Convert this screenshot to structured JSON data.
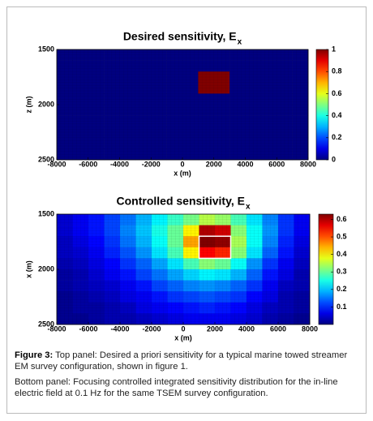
{
  "chart_data": [
    {
      "type": "heatmap",
      "title": "Desired sensitivity, E",
      "title_subscript": "x",
      "xlabel": "x (m)",
      "ylabel": "z (m)",
      "colormap": "jet",
      "xlim": [
        -8000,
        8000
      ],
      "ylim": [
        1500,
        2500
      ],
      "y_inverted": true,
      "xticks": [
        -8000,
        -6000,
        -4000,
        -2000,
        0,
        2000,
        4000,
        6000,
        8000
      ],
      "yticks": [
        1500,
        2000,
        2500
      ],
      "clim": [
        0,
        1
      ],
      "cticks": [
        0,
        0.2,
        0.4,
        0.6,
        0.8,
        1
      ],
      "z": [
        [
          0,
          0,
          0,
          0,
          0,
          0,
          0,
          0,
          0,
          0,
          0,
          0,
          0,
          0,
          0,
          0
        ],
        [
          0,
          0,
          0,
          0,
          0,
          0,
          0,
          0,
          0,
          0,
          0,
          0,
          0,
          0,
          0,
          0
        ],
        [
          0,
          0,
          0,
          0,
          0,
          0,
          0,
          0,
          0,
          1,
          1,
          0,
          0,
          0,
          0,
          0
        ],
        [
          0,
          0,
          0,
          0,
          0,
          0,
          0,
          0,
          0,
          1,
          1,
          0,
          0,
          0,
          0,
          0
        ],
        [
          0,
          0,
          0,
          0,
          0,
          0,
          0,
          0,
          0,
          0,
          0,
          0,
          0,
          0,
          0,
          0
        ],
        [
          0,
          0,
          0,
          0,
          0,
          0,
          0,
          0,
          0,
          0,
          0,
          0,
          0,
          0,
          0,
          0
        ],
        [
          0,
          0,
          0,
          0,
          0,
          0,
          0,
          0,
          0,
          0,
          0,
          0,
          0,
          0,
          0,
          0
        ],
        [
          0,
          0,
          0,
          0,
          0,
          0,
          0,
          0,
          0,
          0,
          0,
          0,
          0,
          0,
          0,
          0
        ],
        [
          0,
          0,
          0,
          0,
          0,
          0,
          0,
          0,
          0,
          0,
          0,
          0,
          0,
          0,
          0,
          0
        ],
        [
          0,
          0,
          0,
          0,
          0,
          0,
          0,
          0,
          0,
          0,
          0,
          0,
          0,
          0,
          0,
          0
        ]
      ]
    },
    {
      "type": "heatmap",
      "title": "Controlled sensitivity, E",
      "title_subscript": "x",
      "xlabel": "x (m)",
      "ylabel": "x (m)",
      "colormap": "jet",
      "xlim": [
        -8000,
        8000
      ],
      "ylim": [
        1500,
        2500
      ],
      "y_inverted": true,
      "xticks": [
        -8000,
        -6000,
        -4000,
        -2000,
        0,
        2000,
        4000,
        6000,
        8000
      ],
      "yticks": [
        1500,
        2000,
        2500
      ],
      "clim": [
        0,
        0.63
      ],
      "cticks": [
        0.1,
        0.2,
        0.3,
        0.4,
        0.5,
        0.6
      ],
      "z": [
        [
          0.05,
          0.07,
          0.09,
          0.12,
          0.15,
          0.19,
          0.23,
          0.27,
          0.31,
          0.35,
          0.33,
          0.28,
          0.22,
          0.16,
          0.11,
          0.07
        ],
        [
          0.05,
          0.07,
          0.09,
          0.12,
          0.16,
          0.2,
          0.25,
          0.3,
          0.4,
          0.6,
          0.58,
          0.32,
          0.24,
          0.17,
          0.11,
          0.07
        ],
        [
          0.04,
          0.06,
          0.08,
          0.11,
          0.15,
          0.19,
          0.24,
          0.3,
          0.45,
          0.63,
          0.62,
          0.34,
          0.24,
          0.16,
          0.1,
          0.06
        ],
        [
          0.04,
          0.05,
          0.07,
          0.1,
          0.13,
          0.17,
          0.22,
          0.28,
          0.4,
          0.55,
          0.53,
          0.32,
          0.22,
          0.14,
          0.09,
          0.05
        ],
        [
          0.03,
          0.04,
          0.06,
          0.08,
          0.11,
          0.14,
          0.18,
          0.22,
          0.28,
          0.32,
          0.3,
          0.24,
          0.17,
          0.11,
          0.07,
          0.04
        ],
        [
          0.02,
          0.03,
          0.05,
          0.07,
          0.09,
          0.12,
          0.15,
          0.18,
          0.21,
          0.23,
          0.22,
          0.19,
          0.14,
          0.09,
          0.06,
          0.03
        ],
        [
          0.02,
          0.03,
          0.04,
          0.05,
          0.07,
          0.09,
          0.12,
          0.14,
          0.16,
          0.17,
          0.16,
          0.14,
          0.11,
          0.07,
          0.04,
          0.03
        ],
        [
          0.01,
          0.02,
          0.03,
          0.04,
          0.06,
          0.07,
          0.09,
          0.11,
          0.12,
          0.13,
          0.12,
          0.11,
          0.08,
          0.06,
          0.03,
          0.02
        ],
        [
          0.01,
          0.02,
          0.02,
          0.03,
          0.04,
          0.06,
          0.07,
          0.08,
          0.09,
          0.1,
          0.09,
          0.08,
          0.06,
          0.04,
          0.03,
          0.02
        ],
        [
          0.01,
          0.01,
          0.02,
          0.03,
          0.03,
          0.04,
          0.05,
          0.06,
          0.07,
          0.07,
          0.07,
          0.06,
          0.05,
          0.03,
          0.02,
          0.01
        ]
      ]
    }
  ],
  "caption": {
    "label": "Figure 3:",
    "text1": "Top panel: Desired a priori sensitivity for a typical marine towed streamer EM survey configuration, shown in figure 1.",
    "text2": "Bottom panel: Focusing controlled integrated sensitivity distribution for the in-line electric field at 0.1 Hz for the same TSEM survey configuration."
  }
}
